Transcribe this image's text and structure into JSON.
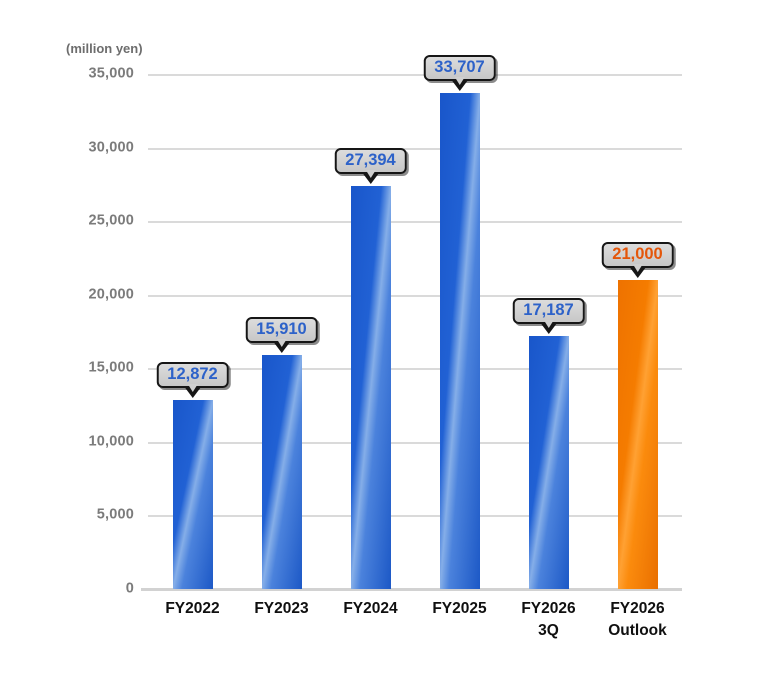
{
  "unit_label": "(million yen)",
  "chart_data": {
    "type": "bar",
    "title": "",
    "xlabel": "",
    "ylabel": "(million yen)",
    "ylim": [
      0,
      35000
    ],
    "ytick_step": 5000,
    "grid": true,
    "yticks": [
      "35,000",
      "30,000",
      "25,000",
      "20,000",
      "15,000",
      "10,000",
      "5,000",
      "0"
    ],
    "categories": [
      "FY2022",
      "FY2023",
      "FY2024",
      "FY2025",
      "FY2026 3Q",
      "FY2026 Outlook"
    ],
    "values": [
      12872,
      15910,
      27394,
      33707,
      17187,
      21000
    ],
    "points": [
      {
        "category": "FY2022",
        "category_line2": "",
        "value": 12872,
        "value_label": "12,872",
        "color_key": "blue"
      },
      {
        "category": "FY2023",
        "category_line2": "",
        "value": 15910,
        "value_label": "15,910",
        "color_key": "blue"
      },
      {
        "category": "FY2024",
        "category_line2": "",
        "value": 27394,
        "value_label": "27,394",
        "color_key": "blue"
      },
      {
        "category": "FY2025",
        "category_line2": "",
        "value": 33707,
        "value_label": "33,707",
        "color_key": "blue"
      },
      {
        "category": "FY2026",
        "category_line2": "3Q",
        "value": 17187,
        "value_label": "17,187",
        "color_key": "blue"
      },
      {
        "category": "FY2026",
        "category_line2": "Outlook",
        "value": 21000,
        "value_label": "21,000",
        "color_key": "orange"
      }
    ],
    "colors": {
      "blue_bar_dark": "#1956ca",
      "blue_bar_light": "#85aee8",
      "orange_bar_dark": "#ee7200",
      "orange_bar_light": "#ffa133",
      "blue_value_text": "#2d62c9",
      "orange_value_text": "#e4560a",
      "callout_bg": "#d3d3d3",
      "callout_border": "#161616",
      "grid_line": "#dadada",
      "axis_text": "#7b7b7b",
      "category_text": "#101010"
    },
    "legend": []
  }
}
